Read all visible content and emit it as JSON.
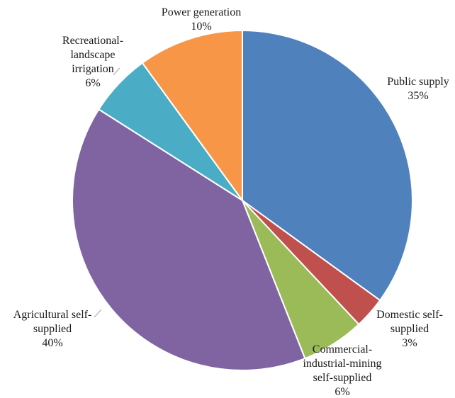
{
  "chart_data": {
    "type": "pie",
    "start_angle_deg": 0,
    "direction": "clockwise",
    "slices": [
      {
        "name": "Public supply",
        "label_lines": [
          "Public supply"
        ],
        "pct_label": "35%",
        "value": 35,
        "color": "#4F81BD"
      },
      {
        "name": "Domestic self-supplied",
        "label_lines": [
          "Domestic self-",
          "supplied"
        ],
        "pct_label": "3%",
        "value": 3,
        "color": "#C0504D"
      },
      {
        "name": "Commercial-industrial-mining self-supplied",
        "label_lines": [
          "Commercial-",
          "industrial-mining",
          "self-supplied"
        ],
        "pct_label": "6%",
        "value": 6,
        "color": "#9BBB59"
      },
      {
        "name": "Agricultural self-supplied",
        "label_lines": [
          "Agricultural self-",
          "supplied"
        ],
        "pct_label": "40%",
        "value": 40,
        "color": "#8064A2"
      },
      {
        "name": "Recreational-landscape irrigation",
        "label_lines": [
          "Recreational-",
          "landscape",
          "irrigation"
        ],
        "pct_label": "6%",
        "value": 6,
        "color": "#4BACC6"
      },
      {
        "name": "Power generation",
        "label_lines": [
          "Power generation"
        ],
        "pct_label": "10%",
        "value": 10,
        "color": "#F79646"
      }
    ]
  }
}
